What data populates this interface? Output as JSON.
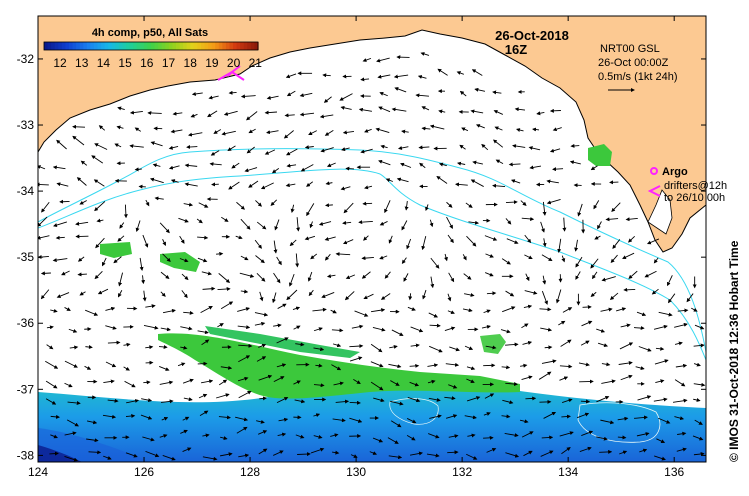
{
  "colorbar": {
    "title": "4h comp, p50, All Sats",
    "ticks": [
      "12",
      "13",
      "14",
      "15",
      "16",
      "17",
      "18",
      "19",
      "20",
      "21"
    ],
    "colors": [
      "#0a1a8c",
      "#0f3fd0",
      "#1a7ff0",
      "#17b8e8",
      "#1fcf9a",
      "#3ed24a",
      "#8fd21e",
      "#e4d21a",
      "#f49a16",
      "#d23a10",
      "#8c1a0a"
    ]
  },
  "date": {
    "line1": "26-Oct-2018",
    "line2": "16Z"
  },
  "legend": {
    "source": "NRT00 GSL",
    "time": "26-Oct 00:00Z",
    "scale": "0.5m/s (1kt 24h)"
  },
  "argo": {
    "label": "Argo",
    "drifters": "drifters@12h",
    "to": "to 26/10 00h"
  },
  "sidebar_text": "© IMOS 31-Oct-2018 12:36 Hobart Time",
  "axes": {
    "x_ticks": [
      "124",
      "126",
      "128",
      "130",
      "132",
      "134",
      "136"
    ],
    "y_ticks": [
      "-32",
      "-33",
      "-34",
      "-35",
      "-36",
      "-37",
      "-38"
    ],
    "xlim": [
      124,
      136.6
    ],
    "ylim": [
      -38.1,
      -31.35
    ]
  },
  "colors": {
    "land": "#fcc992",
    "ocean": "#ffffff",
    "contour": "#3ad8f0",
    "argo": "#ff22ff",
    "sst_green": "#3cc83c",
    "sst_teal": "#20c0c8",
    "sst_blue": "#1888e8"
  }
}
